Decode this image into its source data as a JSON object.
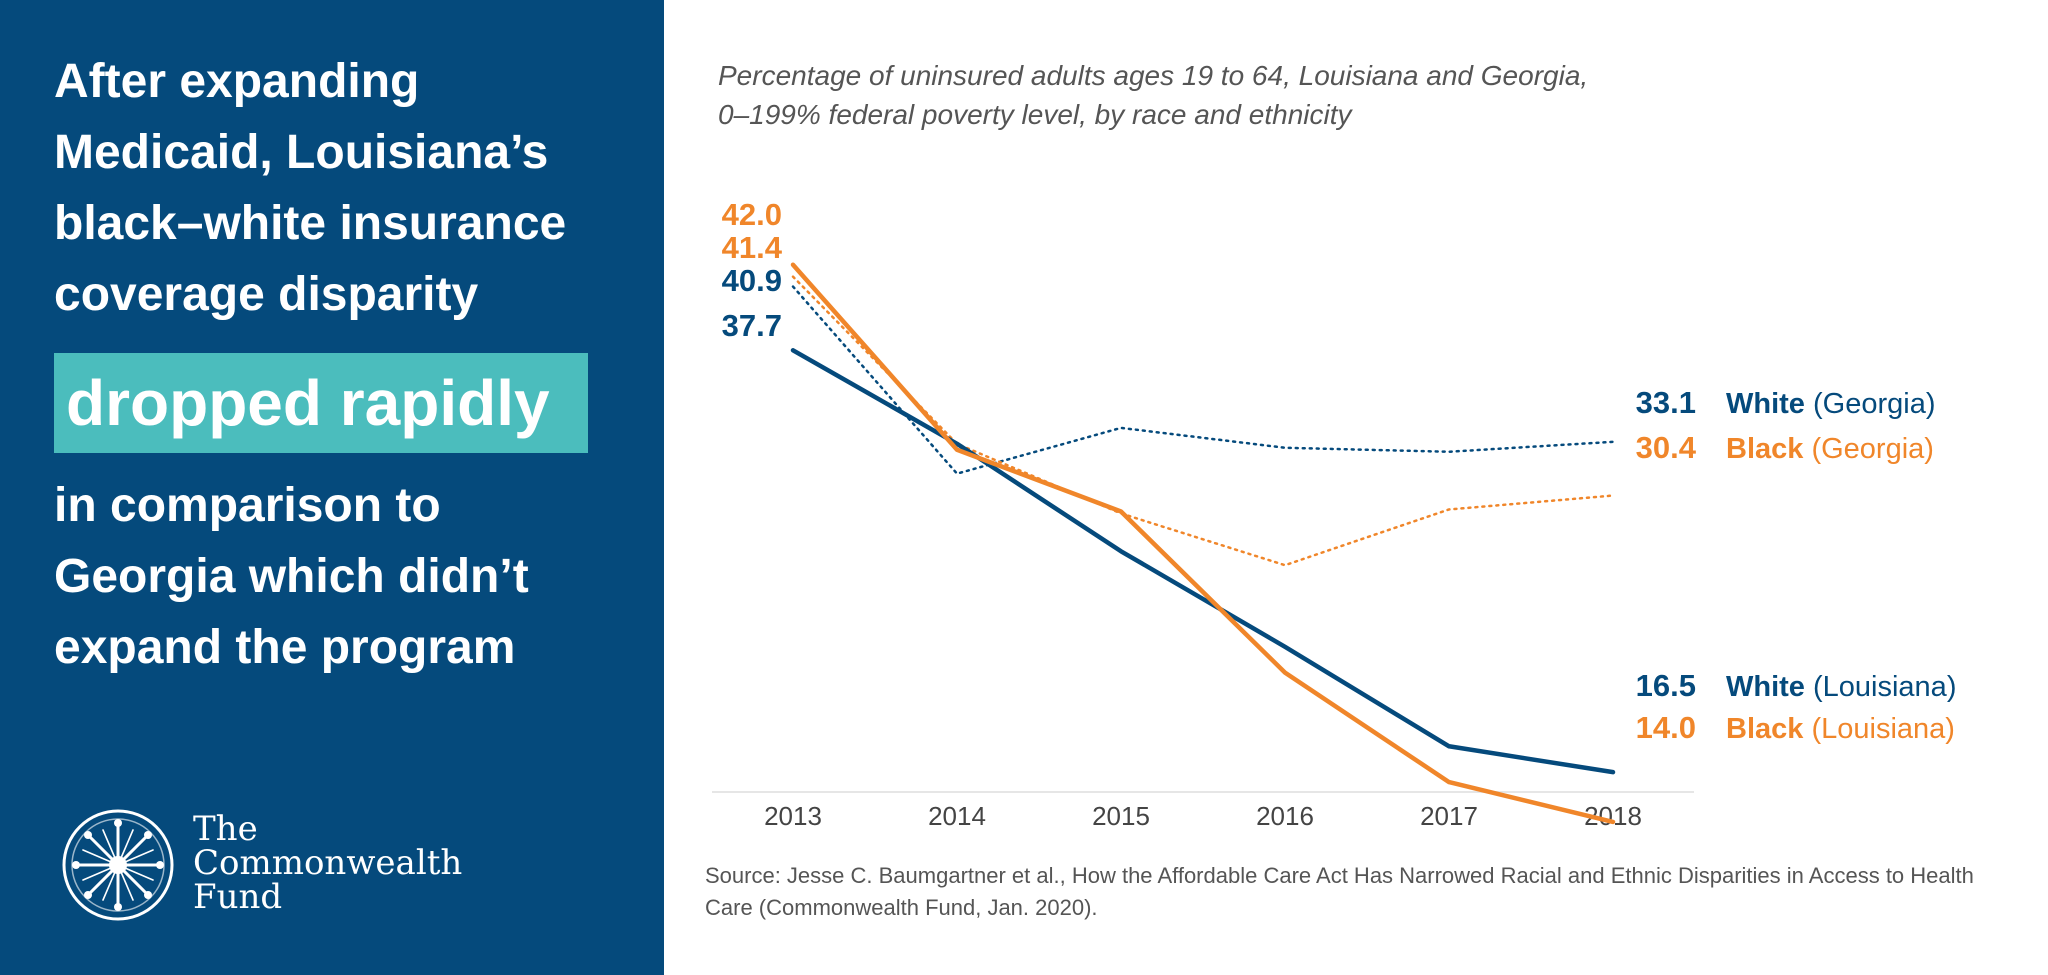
{
  "headline": {
    "top_lines": [
      "After expanding",
      "Medicaid, Louisiana’s",
      "black–white insurance",
      "coverage disparity"
    ],
    "highlight": "dropped rapidly",
    "bottom_lines": [
      "in comparison to",
      "Georgia which didn’t",
      "expand the program"
    ]
  },
  "logo": {
    "lines": [
      "The",
      "Commonwealth",
      "Fund"
    ]
  },
  "subtitle_lines": [
    "Percentage of uninsured adults ages 19 to 64, Louisiana and Georgia,",
    "0–199% federal poverty level, by race and ethnicity"
  ],
  "source_lines": [
    "Source: Jesse C. Baumgartner et al., How the Affordable Care Act Has Narrowed Racial and Ethnic Disparities in Access to Health",
    "Care (Commonwealth Fund, Jan. 2020)."
  ],
  "colors": {
    "navy": "#054a7c",
    "orange": "#f0862a",
    "teal": "#4bbdbd",
    "panel": "#054a7c"
  },
  "chart_data": {
    "type": "line",
    "title": "Percentage of uninsured adults ages 19 to 64, Louisiana and Georgia, 0–199% federal poverty level, by race and ethnicity",
    "xlabel": "",
    "ylabel": "",
    "categories": [
      "2013",
      "2014",
      "2015",
      "2016",
      "2017",
      "2018"
    ],
    "ylim": [
      0,
      45
    ],
    "grid": false,
    "series": [
      {
        "key": "white_la",
        "race": "White",
        "state": "(Louisiana)",
        "color": "#054a7c",
        "style": "solid",
        "values": [
          37.7,
          33.0,
          27.6,
          22.8,
          17.8,
          16.5
        ],
        "start_label": "37.7",
        "end_label": "16.5"
      },
      {
        "key": "black_la",
        "race": "Black",
        "state": "(Louisiana)",
        "color": "#f0862a",
        "style": "solid",
        "values": [
          42.0,
          32.7,
          29.6,
          21.5,
          16.0,
          14.0
        ],
        "start_label": "42.0",
        "end_label": "14.0"
      },
      {
        "key": "white_ga",
        "race": "White",
        "state": "(Georgia)",
        "color": "#054a7c",
        "style": "dotted",
        "values": [
          40.9,
          31.5,
          33.8,
          32.8,
          32.6,
          33.1
        ],
        "start_label": "40.9",
        "end_label": "33.1"
      },
      {
        "key": "black_ga",
        "race": "Black",
        "state": "(Georgia)",
        "color": "#f0862a",
        "style": "dotted",
        "values": [
          41.4,
          33.0,
          29.5,
          26.9,
          29.7,
          30.4
        ],
        "start_label": "41.4",
        "end_label": "30.4"
      }
    ]
  }
}
